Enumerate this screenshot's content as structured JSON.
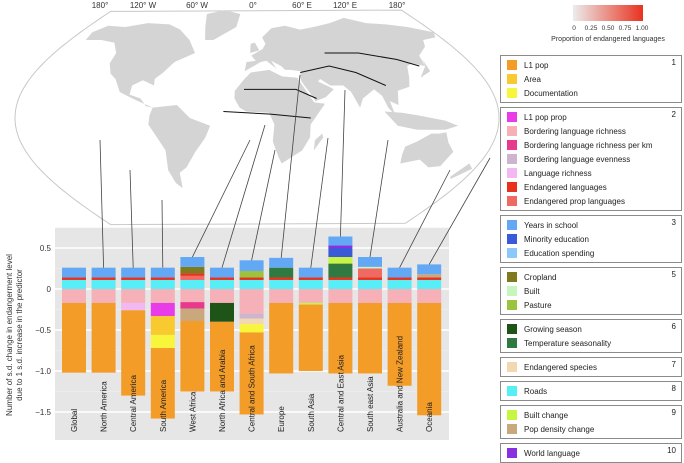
{
  "map": {
    "longitude_labels": [
      "180°",
      "120° W",
      "60° W",
      "0°",
      "60° E",
      "120° E",
      "180°"
    ],
    "colorbar": {
      "ticks": [
        "0",
        "0.25",
        "0.50",
        "0.75",
        "1.00"
      ],
      "title": "Proportion of endangered languages",
      "color_low": "#ececec",
      "color_high": "#e8321e"
    }
  },
  "legend": [
    {
      "number": "1",
      "items": [
        "L1 pop",
        "Area",
        "Documentation"
      ]
    },
    {
      "number": "2",
      "items": [
        "L1 pop prop",
        "Bordering language richness",
        "Bordering language richness per km",
        "Bordering language evenness",
        "Language richness",
        "Endangered languages",
        "Endangered prop languages"
      ]
    },
    {
      "number": "3",
      "items": [
        "Years in school",
        "Minority education",
        "Education spending"
      ]
    },
    {
      "number": "5",
      "items": [
        "Cropland",
        "Built",
        "Pasture"
      ]
    },
    {
      "number": "6",
      "items": [
        "Growing season",
        "Temperature seasonality"
      ]
    },
    {
      "number": "7",
      "items": [
        "Endangered species"
      ]
    },
    {
      "number": "8",
      "items": [
        "Roads"
      ]
    },
    {
      "number": "9",
      "items": [
        "Built change",
        "Pop density change"
      ]
    },
    {
      "number": "10",
      "items": [
        "World language"
      ]
    }
  ],
  "chart_data": {
    "type": "bar",
    "stacked": true,
    "ylabel": [
      "Number of s.d. change in endangerment level",
      "due to 1 s.d. increase in the predictor"
    ],
    "xlabel": "",
    "ylim": [
      -1.75,
      0.7
    ],
    "yticks": [
      0.5,
      0,
      -0.5,
      -1.0,
      -1.5
    ],
    "ytick_labels": [
      "0.5",
      "0",
      "−0.5",
      "−1.0",
      "−1.5"
    ],
    "grid": true,
    "legend_position": "right",
    "colors": {
      "L1 pop": "#f39c28",
      "Area": "#f9c930",
      "Documentation": "#f8f53a",
      "L1 pop prop": "#e83ce8",
      "Bordering language richness": "#f5b0b8",
      "Bordering language richness per km": "#e83a8c",
      "Bordering language evenness": "#cfb4d0",
      "Language richness": "#f2b8f2",
      "Endangered languages": "#e8321e",
      "Endangered prop languages": "#ee6a62",
      "Years in school": "#62a8f4",
      "Minority education": "#3a5ad8",
      "Education spending": "#8cc8f8",
      "Cropland": "#7f7a1e",
      "Built": "#c8f4c0",
      "Pasture": "#9cc23e",
      "Growing season": "#1e5418",
      "Temperature seasonality": "#2e7a40",
      "Endangered species": "#f2d8b0",
      "Roads": "#58eef8",
      "Built change": "#c8f444",
      "Pop density change": "#c8a87c",
      "World language": "#8a30e0"
    },
    "categories": [
      "Global",
      "North America",
      "Central America",
      "South America",
      "West Africa",
      "North Africa and Arabia",
      "Central and South Africa",
      "Europe",
      "South Asia",
      "Central and East Asia",
      "South east Asia",
      "Australia and New Zealand",
      "Oceania"
    ],
    "bars": [
      {
        "positive": [
          [
            "Roads",
            0.11
          ],
          [
            "Endangered languages",
            0.03
          ],
          [
            "Years in school",
            0.12
          ]
        ],
        "negative": [
          [
            "Bordering language richness",
            -0.17
          ],
          [
            "L1 pop",
            -0.85
          ]
        ]
      },
      {
        "positive": [
          [
            "Roads",
            0.11
          ],
          [
            "Endangered languages",
            0.03
          ],
          [
            "Years in school",
            0.12
          ]
        ],
        "negative": [
          [
            "Bordering language richness",
            -0.17
          ],
          [
            "L1 pop",
            -0.85
          ]
        ]
      },
      {
        "positive": [
          [
            "Roads",
            0.11
          ],
          [
            "Endangered languages",
            0.03
          ],
          [
            "Years in school",
            0.12
          ]
        ],
        "negative": [
          [
            "Bordering language richness",
            -0.17
          ],
          [
            "Language richness",
            -0.09
          ],
          [
            "L1 pop",
            -1.04
          ]
        ]
      },
      {
        "positive": [
          [
            "Roads",
            0.11
          ],
          [
            "Endangered languages",
            0.03
          ],
          [
            "Years in school",
            0.12
          ]
        ],
        "negative": [
          [
            "Bordering language richness",
            -0.17
          ],
          [
            "L1 pop prop",
            -0.16
          ],
          [
            "Area",
            -0.23
          ],
          [
            "Documentation",
            -0.16
          ],
          [
            "L1 pop",
            -0.86
          ]
        ]
      },
      {
        "positive": [
          [
            "Roads",
            0.11
          ],
          [
            "Endangered prop languages",
            0.05
          ],
          [
            "Endangered languages",
            0.03
          ],
          [
            "Cropland",
            0.08
          ],
          [
            "Years in school",
            0.12
          ]
        ],
        "negative": [
          [
            "Bordering language richness",
            -0.16
          ],
          [
            "Bordering language richness per km",
            -0.08
          ],
          [
            "Pop density change",
            -0.15
          ],
          [
            "L1 pop",
            -0.86
          ]
        ]
      },
      {
        "positive": [
          [
            "Roads",
            0.11
          ],
          [
            "Endangered languages",
            0.03
          ],
          [
            "Years in school",
            0.12
          ]
        ],
        "negative": [
          [
            "Bordering language richness",
            -0.17
          ],
          [
            "Growing season",
            -0.23
          ],
          [
            "L1 pop",
            -0.85
          ]
        ]
      },
      {
        "positive": [
          [
            "Roads",
            0.11
          ],
          [
            "Endangered languages",
            0.03
          ],
          [
            "Pasture",
            0.08
          ],
          [
            "Years in school",
            0.13
          ]
        ],
        "negative": [
          [
            "Bordering language richness",
            -0.3
          ],
          [
            "Bordering language evenness",
            -0.06
          ],
          [
            "Endangered species",
            -0.07
          ],
          [
            "Documentation",
            -0.1
          ],
          [
            "L1 pop",
            -1.0
          ]
        ]
      },
      {
        "positive": [
          [
            "Roads",
            0.11
          ],
          [
            "Endangered languages",
            0.03
          ],
          [
            "Temperature seasonality",
            0.12
          ],
          [
            "Years in school",
            0.12
          ]
        ],
        "negative": [
          [
            "Bordering language richness",
            -0.17
          ],
          [
            "L1 pop",
            -0.86
          ]
        ]
      },
      {
        "positive": [
          [
            "Roads",
            0.11
          ],
          [
            "Endangered languages",
            0.03
          ],
          [
            "Years in school",
            0.12
          ]
        ],
        "negative": [
          [
            "Bordering language richness",
            -0.17
          ],
          [
            "Built change",
            -0.02
          ],
          [
            "L1 pop",
            -0.81
          ]
        ]
      },
      {
        "positive": [
          [
            "Roads",
            0.11
          ],
          [
            "Endangered languages",
            0.03
          ],
          [
            "Temperature seasonality",
            0.17
          ],
          [
            "Built change",
            0.08
          ],
          [
            "Minority education",
            0.11
          ],
          [
            "World language",
            0.03
          ],
          [
            "Years in school",
            0.11
          ]
        ],
        "negative": [
          [
            "Bordering language richness",
            -0.17
          ],
          [
            "L1 pop",
            -0.86
          ]
        ]
      },
      {
        "positive": [
          [
            "Roads",
            0.11
          ],
          [
            "Endangered languages",
            0.03
          ],
          [
            "Endangered prop languages",
            0.11
          ],
          [
            "Built",
            0.02
          ],
          [
            "Years in school",
            0.12
          ]
        ],
        "negative": [
          [
            "Bordering language richness",
            -0.17
          ],
          [
            "L1 pop",
            -0.86
          ]
        ]
      },
      {
        "positive": [
          [
            "Roads",
            0.11
          ],
          [
            "Endangered languages",
            0.03
          ],
          [
            "Years in school",
            0.12
          ]
        ],
        "negative": [
          [
            "Bordering language richness",
            -0.17
          ],
          [
            "L1 pop",
            -1.01
          ]
        ]
      },
      {
        "positive": [
          [
            "Roads",
            0.11
          ],
          [
            "Endangered languages",
            0.03
          ],
          [
            "Pop density change",
            0.04
          ],
          [
            "Years in school",
            0.12
          ]
        ],
        "negative": [
          [
            "Bordering language richness",
            -0.17
          ],
          [
            "L1 pop",
            -1.37
          ]
        ]
      }
    ]
  }
}
